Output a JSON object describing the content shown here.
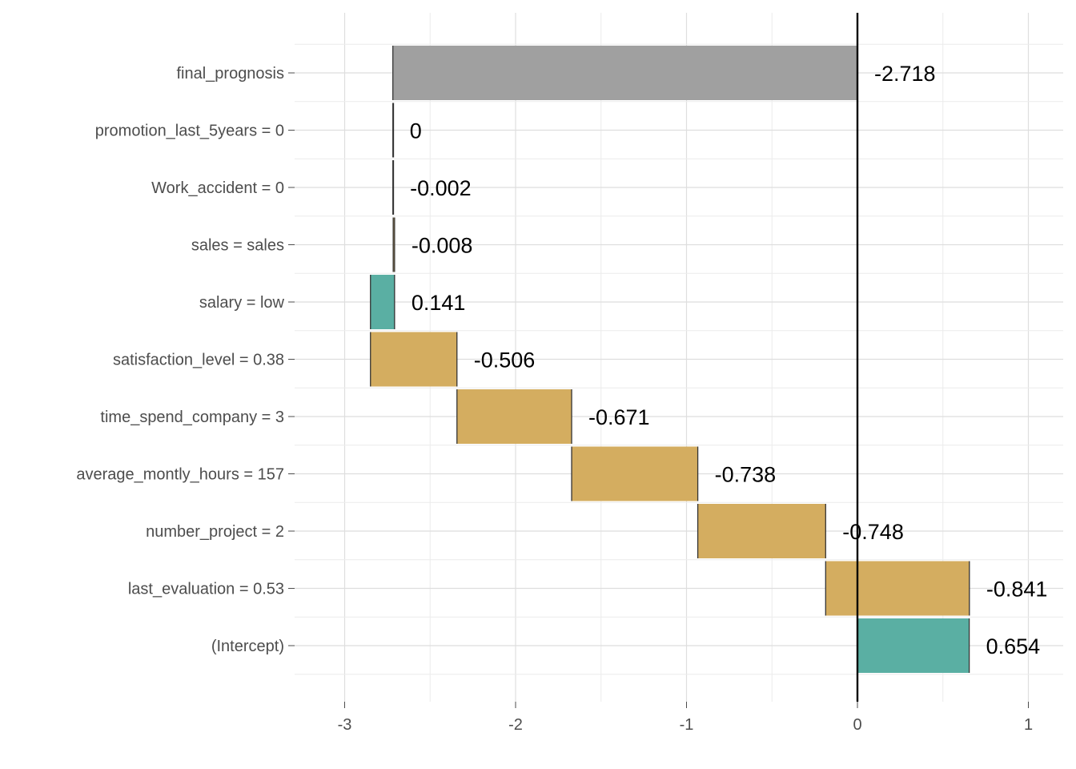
{
  "chart_data": {
    "type": "bar",
    "subtype": "waterfall-horizontal",
    "title": "",
    "xlabel": "",
    "ylabel": "",
    "xlim": [
      -3.3,
      1.2
    ],
    "x_ticks": [
      -3,
      -2,
      -1,
      0,
      1
    ],
    "x_tick_labels": [
      "-3",
      "-2",
      "-1",
      "0",
      "1"
    ],
    "grid": true,
    "colors": {
      "positive": "#5aafa3",
      "negative": "#d4ad60",
      "total": "#a0a0a0",
      "zero_line": "#000000"
    },
    "bars": [
      {
        "label": "final_prognosis",
        "start": 0,
        "end": -2.718,
        "value_label": "-2.718",
        "kind": "total"
      },
      {
        "label": "promotion_last_5years = 0",
        "start": -2.718,
        "end": -2.718,
        "value_label": "0",
        "kind": "positive"
      },
      {
        "label": "Work_accident = 0",
        "start": -2.716,
        "end": -2.718,
        "value_label": "-0.002",
        "kind": "negative"
      },
      {
        "label": "sales = sales",
        "start": -2.708,
        "end": -2.716,
        "value_label": "-0.008",
        "kind": "negative"
      },
      {
        "label": "salary = low",
        "start": -2.849,
        "end": -2.708,
        "value_label": "0.141",
        "kind": "positive"
      },
      {
        "label": "satisfaction_level = 0.38",
        "start": -2.343,
        "end": -2.849,
        "value_label": "-0.506",
        "kind": "negative"
      },
      {
        "label": "time_spend_company = 3",
        "start": -1.672,
        "end": -2.343,
        "value_label": "-0.671",
        "kind": "negative"
      },
      {
        "label": "average_montly_hours = 157",
        "start": -0.934,
        "end": -1.672,
        "value_label": "-0.738",
        "kind": "negative"
      },
      {
        "label": "number_project = 2",
        "start": -0.186,
        "end": -0.934,
        "value_label": "-0.748",
        "kind": "negative"
      },
      {
        "label": "last_evaluation = 0.53",
        "start": 0.655,
        "end": -0.186,
        "value_label": "-0.841",
        "kind": "negative"
      },
      {
        "label": "(Intercept)",
        "start": 0,
        "end": 0.654,
        "value_label": "0.654",
        "kind": "positive"
      }
    ]
  }
}
